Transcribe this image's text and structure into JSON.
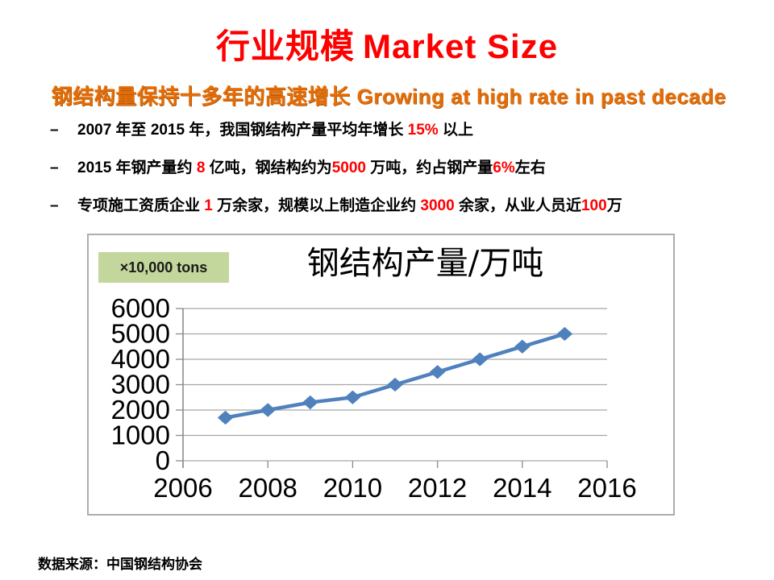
{
  "slide": {
    "title": {
      "cn": "行业规模",
      "en": "Market Size"
    },
    "subtitle": "钢结构量保持十多年的高速增长 Growing at high rate in past decade",
    "bullet_marker": "–",
    "bullets": [
      {
        "segments": [
          {
            "text": "2007 年至 2015 年，我国钢结构产量平均年增长 ",
            "color": "black"
          },
          {
            "text": "15%",
            "color": "red"
          },
          {
            "text": " 以上",
            "color": "black"
          }
        ]
      },
      {
        "segments": [
          {
            "text": "2015 年钢产量约 ",
            "color": "black"
          },
          {
            "text": "8",
            "color": "red"
          },
          {
            "text": " 亿吨，钢结构约为",
            "color": "black"
          },
          {
            "text": "5000",
            "color": "red"
          },
          {
            "text": " 万吨，约占钢产量",
            "color": "black"
          },
          {
            "text": "6%",
            "color": "red"
          },
          {
            "text": "左右",
            "color": "black"
          }
        ]
      },
      {
        "segments": [
          {
            "text": "专项施工资质企业 ",
            "color": "black"
          },
          {
            "text": "1",
            "color": "red"
          },
          {
            "text": " 万余家，规模以上制造企业约 ",
            "color": "black"
          },
          {
            "text": "3000",
            "color": "red"
          },
          {
            "text": " 余家，从业人员近",
            "color": "black"
          },
          {
            "text": "100",
            "color": "red"
          },
          {
            "text": "万",
            "color": "black"
          }
        ]
      }
    ],
    "footer": "数据来源：中国钢结构协会"
  },
  "chart_data": {
    "type": "line",
    "title": "钢结构产量/万吨",
    "unit_label": "×10,000 tons",
    "x": [
      2007,
      2008,
      2009,
      2010,
      2011,
      2012,
      2013,
      2014,
      2015
    ],
    "values": [
      1700,
      2000,
      2300,
      2500,
      3000,
      3500,
      4000,
      4500,
      5000
    ],
    "xlim": [
      2006,
      2016
    ],
    "ylim": [
      0,
      6000
    ],
    "x_ticks": [
      2006,
      2008,
      2010,
      2012,
      2014,
      2016
    ],
    "y_ticks": [
      0,
      1000,
      2000,
      3000,
      4000,
      5000,
      6000
    ],
    "grid": true,
    "legend": "none",
    "marker": "diamond",
    "colors": {
      "line": "#4F81BD",
      "gridline": "#A6A6A6",
      "axis": "#8C8C8C",
      "tick_label": "#000000"
    }
  },
  "theme_colors": {
    "title_red": "#FE0000",
    "subtitle_orange": "#E36C09",
    "highlight_red": "#FF0000",
    "badge_green": "#C3D69B",
    "chart_border_gray": "#ADADAD"
  }
}
